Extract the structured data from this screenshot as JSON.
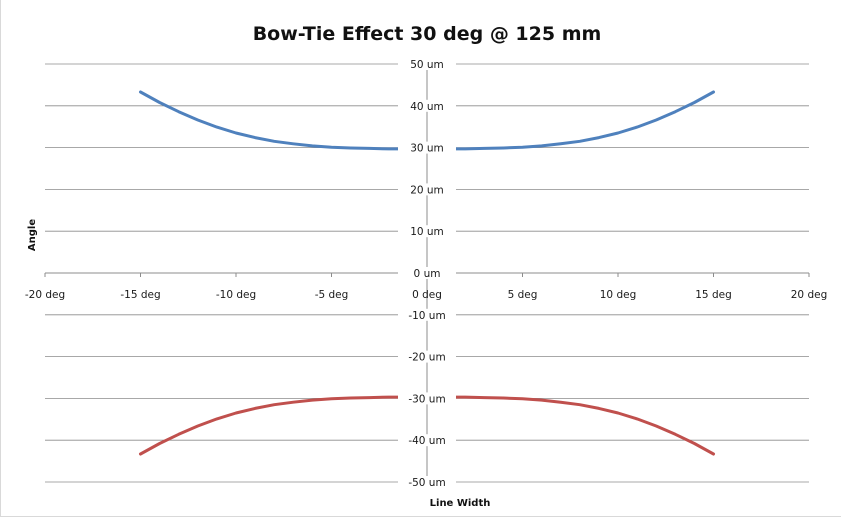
{
  "chart_data": {
    "type": "line",
    "title": "Bow-Tie Effect 30 deg @ 125 mm",
    "xlabel": "Line Width",
    "ylabel": "Angle",
    "xlim": [
      -20,
      20
    ],
    "ylim": [
      -50,
      50
    ],
    "x_ticks": [
      {
        "value": -20,
        "label": "-20 deg"
      },
      {
        "value": -15,
        "label": "-15 deg"
      },
      {
        "value": -10,
        "label": "-10 deg"
      },
      {
        "value": -5,
        "label": "-5 deg"
      },
      {
        "value": 0,
        "label": "0 deg"
      },
      {
        "value": 5,
        "label": "5 deg"
      },
      {
        "value": 10,
        "label": "10 deg"
      },
      {
        "value": 15,
        "label": "15 deg"
      },
      {
        "value": 20,
        "label": "20 deg"
      }
    ],
    "y_ticks": [
      {
        "value": 50,
        "label": "50 um"
      },
      {
        "value": 40,
        "label": "40 um"
      },
      {
        "value": 30,
        "label": "30 um"
      },
      {
        "value": 20,
        "label": "20 um"
      },
      {
        "value": 10,
        "label": "10 um"
      },
      {
        "value": 0,
        "label": "0 um"
      },
      {
        "value": -10,
        "label": "-10 um"
      },
      {
        "value": -20,
        "label": "-20 um"
      },
      {
        "value": -30,
        "label": "-30 um"
      },
      {
        "value": -40,
        "label": "-40 um"
      },
      {
        "value": -50,
        "label": "-50 um"
      }
    ],
    "grid": true,
    "series": [
      {
        "color": "#4f81bd",
        "x": [
          -15,
          -14,
          -13,
          -12,
          -11,
          -10,
          -9,
          -8,
          -7,
          -6,
          -5,
          -4,
          -3,
          -2,
          -1,
          0,
          1,
          2,
          3,
          4,
          5,
          6,
          7,
          8,
          9,
          10,
          11,
          12,
          13,
          14,
          15
        ],
        "y": [
          43.3,
          40.8,
          38.6,
          36.6,
          34.9,
          33.5,
          32.4,
          31.5,
          30.9,
          30.4,
          30.1,
          29.9,
          29.8,
          29.7,
          29.7,
          29.7,
          29.7,
          29.7,
          29.8,
          29.9,
          30.1,
          30.4,
          30.9,
          31.5,
          32.4,
          33.5,
          34.9,
          36.6,
          38.6,
          40.8,
          43.3
        ]
      },
      {
        "color": "#c0504d",
        "x": [
          -15,
          -14,
          -13,
          -12,
          -11,
          -10,
          -9,
          -8,
          -7,
          -6,
          -5,
          -4,
          -3,
          -2,
          -1,
          0,
          1,
          2,
          3,
          4,
          5,
          6,
          7,
          8,
          9,
          10,
          11,
          12,
          13,
          14,
          15
        ],
        "y": [
          -43.3,
          -40.8,
          -38.6,
          -36.6,
          -34.9,
          -33.5,
          -32.4,
          -31.5,
          -30.9,
          -30.4,
          -30.1,
          -29.9,
          -29.8,
          -29.7,
          -29.7,
          -29.7,
          -29.7,
          -29.7,
          -29.8,
          -29.9,
          -30.1,
          -30.4,
          -30.9,
          -31.5,
          -32.4,
          -33.5,
          -34.9,
          -36.6,
          -38.6,
          -40.8,
          -43.3
        ]
      }
    ]
  }
}
